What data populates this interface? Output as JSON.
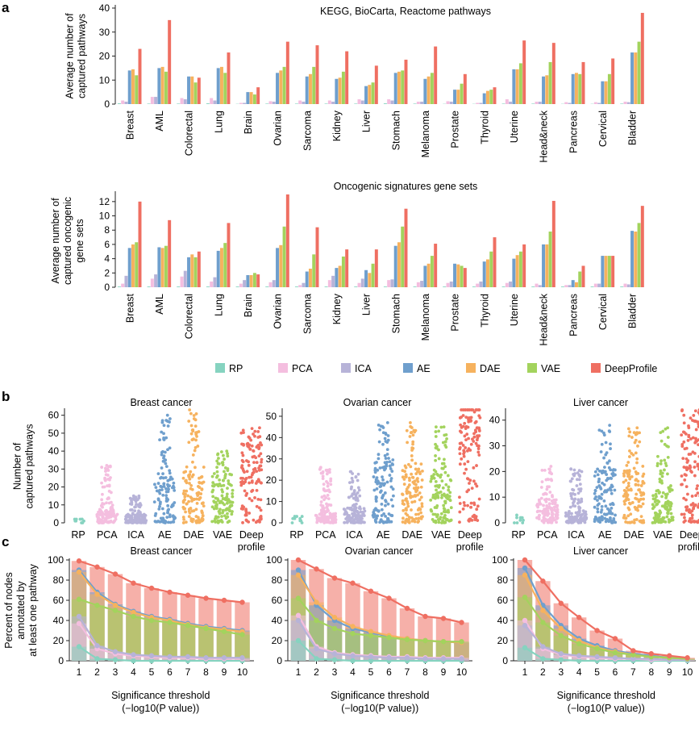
{
  "panel_letters": [
    "a",
    "b",
    "c"
  ],
  "methods": [
    "RP",
    "PCA",
    "ICA",
    "AE",
    "DAE",
    "VAE",
    "DeepProfile"
  ],
  "colors": {
    "RP": "#86d3c0",
    "PCA": "#f4bedf",
    "ICA": "#b7b3d8",
    "AE": "#6f9fcd",
    "DAE": "#f6b25e",
    "VAE": "#a3d35d",
    "DeepProfile": "#ef6f62"
  },
  "chart_data": [
    {
      "type": "bar",
      "title": "KEGG, BioCarta, Reactome pathways",
      "xlabel": "",
      "ylabel": "Average number of captured pathways",
      "ylabel_lines": [
        "Average number of",
        "captured pathways"
      ],
      "ylim": [
        0,
        40
      ],
      "yticks": [
        0,
        10,
        20,
        30,
        40
      ],
      "categories": [
        "Breast",
        "AML",
        "Colorectal",
        "Lung",
        "Brain",
        "Ovarian",
        "Sarcoma",
        "Kidney",
        "Liver",
        "Stomach",
        "Melanoma",
        "Prostate",
        "Thyroid",
        "Uterine",
        "Head&neck",
        "Pancreas",
        "Cervical",
        "Bladder"
      ],
      "series": [
        {
          "name": "RP",
          "values": [
            0.3,
            0.2,
            0.2,
            0.3,
            0.1,
            0.2,
            0.2,
            0.2,
            0.2,
            0.3,
            0.2,
            0.1,
            0.1,
            0.2,
            0.2,
            0.1,
            0.1,
            0.2
          ]
        },
        {
          "name": "PCA",
          "values": [
            1.5,
            3.0,
            2.5,
            2.5,
            0.5,
            1.2,
            1.5,
            1.5,
            2.0,
            2.0,
            1.0,
            1.2,
            0.5,
            2.0,
            1.0,
            0.8,
            0.8,
            1.0
          ]
        },
        {
          "name": "ICA",
          "values": [
            1.0,
            3.0,
            2.0,
            1.5,
            0.5,
            1.0,
            1.0,
            1.0,
            1.5,
            1.5,
            1.0,
            1.0,
            0.5,
            1.0,
            1.0,
            0.5,
            0.5,
            0.8
          ]
        },
        {
          "name": "AE",
          "values": [
            14,
            15,
            11.5,
            15,
            5,
            13,
            11.5,
            10.5,
            7.5,
            13,
            10.5,
            6,
            4.5,
            14.5,
            11.5,
            12.5,
            9.5,
            21.5
          ]
        },
        {
          "name": "DAE",
          "values": [
            14.5,
            15.5,
            11.5,
            15.5,
            5,
            14,
            12.5,
            11,
            8,
            13.5,
            11.5,
            6,
            5.5,
            14.5,
            12,
            13,
            9.5,
            21.5
          ]
        },
        {
          "name": "VAE",
          "values": [
            12,
            13.5,
            9,
            13,
            4,
            15.5,
            15.5,
            13.5,
            9,
            14,
            13,
            8.5,
            6,
            17,
            17.5,
            12.5,
            12.5,
            26
          ]
        },
        {
          "name": "DeepProfile",
          "values": [
            23,
            35,
            11,
            21.5,
            7,
            26,
            24.5,
            22,
            16,
            18.5,
            24,
            12.5,
            7,
            26.5,
            25.5,
            17.5,
            19,
            38
          ]
        }
      ]
    },
    {
      "type": "bar",
      "title": "Oncogenic signatures gene sets",
      "xlabel": "",
      "ylabel": "Average number of captured oncogenic gene sets",
      "ylabel_lines": [
        "Average number of",
        "captured oncogenic",
        "gene sets"
      ],
      "ylim": [
        0,
        13
      ],
      "yticks": [
        0,
        2,
        4,
        6,
        8,
        10,
        12
      ],
      "categories": [
        "Breast",
        "AML",
        "Colorectal",
        "Lung",
        "Brain",
        "Ovarian",
        "Sarcoma",
        "Kidney",
        "Liver",
        "Stomach",
        "Melanoma",
        "Prostate",
        "Thyroid",
        "Uterine",
        "Head&neck",
        "Pancreas",
        "Cervical",
        "Bladder"
      ],
      "series": [
        {
          "name": "RP",
          "values": [
            0.1,
            0.1,
            0.1,
            0.1,
            0.1,
            0.1,
            0.1,
            0.1,
            0.1,
            0.1,
            0.1,
            0.1,
            0.1,
            0.1,
            0.1,
            0.1,
            0.1,
            0.1
          ]
        },
        {
          "name": "PCA",
          "values": [
            0.5,
            1.2,
            1.5,
            0.8,
            0.5,
            0.7,
            0.3,
            1.0,
            0.6,
            1.0,
            0.7,
            0.6,
            0.5,
            0.6,
            0.5,
            0.3,
            0.5,
            0.5
          ]
        },
        {
          "name": "ICA",
          "values": [
            1.6,
            1.8,
            2.3,
            1.4,
            1.0,
            1.0,
            0.6,
            1.6,
            1.2,
            1.1,
            0.9,
            0.8,
            0.8,
            0.8,
            0.3,
            0.3,
            0.5,
            0.4
          ]
        },
        {
          "name": "AE",
          "values": [
            5.5,
            5.6,
            4.2,
            5.1,
            1.7,
            5.5,
            2.2,
            2.7,
            2.4,
            5.8,
            3.0,
            3.3,
            3.6,
            4.0,
            6.0,
            1.0,
            4.4,
            7.9
          ]
        },
        {
          "name": "DAE",
          "values": [
            6.0,
            5.5,
            4.6,
            5.5,
            1.7,
            5.9,
            2.6,
            3.0,
            2.0,
            6.3,
            3.3,
            3.2,
            3.9,
            4.5,
            6.0,
            0.7,
            4.4,
            7.8
          ]
        },
        {
          "name": "VAE",
          "values": [
            6.3,
            5.8,
            4.2,
            6.2,
            2.0,
            8.5,
            4.6,
            4.3,
            3.3,
            8.5,
            4.4,
            3.0,
            5.0,
            5.0,
            7.8,
            2.2,
            4.4,
            9.0
          ]
        },
        {
          "name": "DeepProfile",
          "values": [
            12,
            9.4,
            5.0,
            9.0,
            1.8,
            13,
            8.4,
            5.3,
            5.3,
            11,
            6.1,
            2.7,
            7.0,
            6.0,
            12.1,
            3.0,
            4.4,
            11.4
          ]
        }
      ]
    },
    {
      "type": "scatter",
      "subtype": "swarm",
      "title": "Breast cancer",
      "ylabel": "Number of captured pathways",
      "ylabel_lines": [
        "Number of",
        "captured pathways"
      ],
      "ylim": [
        0,
        63
      ],
      "yticks": [
        0,
        10,
        20,
        30,
        40,
        50,
        60
      ],
      "categories": [
        "RP",
        "PCA",
        "ICA",
        "AE",
        "DAE",
        "VAE",
        "Deep profile"
      ],
      "max_values": [
        2,
        32,
        15,
        60,
        63,
        40,
        53
      ],
      "medians": [
        0,
        3,
        2,
        12,
        13,
        11,
        22
      ]
    },
    {
      "type": "scatter",
      "subtype": "swarm",
      "title": "Ovarian cancer",
      "ylabel": "",
      "ylim": [
        0,
        53
      ],
      "yticks": [
        0,
        10,
        20,
        30,
        40,
        50
      ],
      "categories": [
        "RP",
        "PCA",
        "ICA",
        "AE",
        "DAE",
        "VAE",
        "Deep profile"
      ],
      "max_values": [
        3,
        26,
        24,
        47,
        47,
        45,
        53
      ],
      "medians": [
        0,
        2,
        3,
        12,
        12,
        10,
        33
      ]
    },
    {
      "type": "scatter",
      "subtype": "swarm",
      "title": "Liver cancer",
      "ylabel": "",
      "ylim": [
        0,
        44
      ],
      "yticks": [
        0,
        10,
        20,
        30,
        40
      ],
      "categories": [
        "RP",
        "PCA",
        "ICA",
        "AE",
        "DAE",
        "VAE",
        "Deep profile"
      ],
      "max_values": [
        3,
        22,
        21,
        38,
        37,
        37,
        44
      ],
      "medians": [
        0,
        4,
        2,
        9,
        9,
        6,
        20
      ]
    },
    {
      "type": "line",
      "title": "Breast cancer",
      "xlabel": "Significance threshold",
      "xlabel_sub": "(−log10(P value))",
      "ylabel": "Percent of nodes annotated by at least one pathway",
      "ylabel_lines": [
        "Percent of nodes",
        "annotated by",
        "at least one pathway"
      ],
      "x": [
        1,
        2,
        3,
        4,
        5,
        6,
        7,
        8,
        9,
        10
      ],
      "ylim": [
        0,
        100
      ],
      "yticks": [
        0,
        20,
        40,
        60,
        80,
        100
      ],
      "series": [
        {
          "name": "RP",
          "values": [
            14,
            2,
            1,
            0,
            0,
            0,
            0,
            0,
            0,
            0
          ]
        },
        {
          "name": "PCA",
          "values": [
            37,
            12,
            7,
            5,
            4,
            3,
            3,
            2,
            2,
            2
          ]
        },
        {
          "name": "ICA",
          "values": [
            44,
            15,
            9,
            6,
            5,
            4,
            4,
            3,
            3,
            3
          ]
        },
        {
          "name": "AE",
          "values": [
            90,
            68,
            56,
            49,
            44,
            41,
            37,
            34,
            32,
            30
          ]
        },
        {
          "name": "DAE",
          "values": [
            88,
            66,
            55,
            48,
            43,
            40,
            36,
            33,
            31,
            29
          ]
        },
        {
          "name": "VAE",
          "values": [
            61,
            55,
            50,
            44,
            40,
            38,
            35,
            32,
            29,
            26
          ]
        },
        {
          "name": "DeepProfile",
          "values": [
            99,
            93,
            86,
            77,
            72,
            68,
            65,
            62,
            60,
            58
          ]
        }
      ]
    },
    {
      "type": "line",
      "title": "Ovarian cancer",
      "xlabel": "Significance threshold",
      "xlabel_sub": "(−log10(P value))",
      "ylabel": "",
      "x": [
        1,
        2,
        3,
        4,
        5,
        6,
        7,
        8,
        9,
        10
      ],
      "ylim": [
        0,
        100
      ],
      "yticks": [
        0,
        20,
        40,
        60,
        80,
        100
      ],
      "series": [
        {
          "name": "RP",
          "values": [
            20,
            2,
            1,
            0,
            0,
            0,
            0,
            0,
            0,
            0
          ]
        },
        {
          "name": "PCA",
          "values": [
            45,
            14,
            8,
            6,
            5,
            4,
            4,
            3,
            3,
            3
          ]
        },
        {
          "name": "ICA",
          "values": [
            40,
            12,
            7,
            5,
            4,
            3,
            3,
            2,
            2,
            2
          ]
        },
        {
          "name": "AE",
          "values": [
            90,
            55,
            40,
            32,
            28,
            24,
            22,
            20,
            19,
            18
          ]
        },
        {
          "name": "DAE",
          "values": [
            85,
            58,
            43,
            34,
            29,
            25,
            22,
            20,
            19,
            18
          ]
        },
        {
          "name": "VAE",
          "values": [
            62,
            40,
            32,
            27,
            25,
            23,
            21,
            20,
            19,
            19
          ]
        },
        {
          "name": "DeepProfile",
          "values": [
            100,
            91,
            82,
            77,
            69,
            62,
            52,
            44,
            42,
            38
          ]
        }
      ]
    },
    {
      "type": "line",
      "title": "Liver cancer",
      "xlabel": "Significance threshold",
      "xlabel_sub": "(−log10(P value))",
      "ylabel": "",
      "x": [
        1,
        2,
        3,
        4,
        5,
        6,
        7,
        8,
        9,
        10
      ],
      "ylim": [
        0,
        100
      ],
      "yticks": [
        0,
        20,
        40,
        60,
        80,
        100
      ],
      "series": [
        {
          "name": "RP",
          "values": [
            13,
            2,
            1,
            0,
            0,
            0,
            0,
            0,
            0,
            0
          ]
        },
        {
          "name": "PCA",
          "values": [
            40,
            12,
            6,
            4,
            3,
            2,
            2,
            1,
            1,
            1
          ]
        },
        {
          "name": "ICA",
          "values": [
            35,
            14,
            7,
            5,
            4,
            3,
            2,
            2,
            1,
            1
          ]
        },
        {
          "name": "AE",
          "values": [
            92,
            55,
            35,
            22,
            15,
            10,
            7,
            5,
            3,
            2
          ]
        },
        {
          "name": "DAE",
          "values": [
            85,
            50,
            32,
            20,
            13,
            9,
            6,
            4,
            3,
            2
          ]
        },
        {
          "name": "VAE",
          "values": [
            63,
            38,
            25,
            17,
            12,
            8,
            6,
            4,
            3,
            2
          ]
        },
        {
          "name": "DeepProfile",
          "values": [
            100,
            79,
            57,
            43,
            30,
            22,
            10,
            7,
            5,
            3
          ]
        }
      ]
    }
  ]
}
